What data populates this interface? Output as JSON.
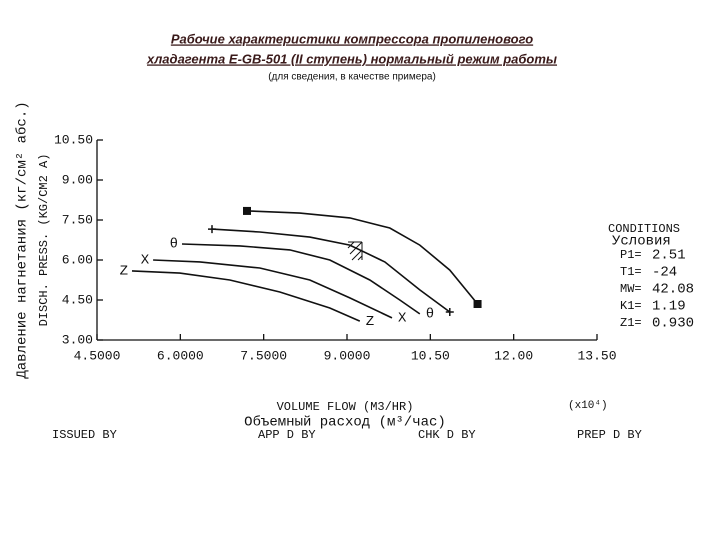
{
  "chart_data": {
    "type": "line",
    "title": "Рабочие характеристики компрессора пропиленового",
    "title_line2": "хладагента Е-GB-501 (II ступень) нормальный режим работы",
    "subtitle": "(для сведения, в качестве примера)",
    "y_label": "DISCH. PRESS. (KG/CM2 A)",
    "y_label_ru": "Давление нагнетания (кг/см² абс.)",
    "x_label": "VOLUME FLOW (M3/HR)",
    "x_label_ru": "Объемный расход (м³/час)",
    "x_multiplier": "(x10⁴)",
    "xlim": [
      4.5,
      13.5
    ],
    "ylim": [
      3.0,
      10.5
    ],
    "xticks": [
      {
        "value": 4.5,
        "label": "4.5000"
      },
      {
        "value": 6,
        "label": "6.0000"
      },
      {
        "value": 7.5,
        "label": "7.5000"
      },
      {
        "value": 9,
        "label": "9.0000"
      },
      {
        "value": 10.5,
        "label": "10.50"
      },
      {
        "value": 12,
        "label": "12.00"
      },
      {
        "value": 13.5,
        "label": "13.50"
      }
    ],
    "yticks": [
      {
        "value": 3,
        "label": "3.00"
      },
      {
        "value": 4.5,
        "label": "4.50"
      },
      {
        "value": 6,
        "label": "6.00"
      },
      {
        "value": 7.5,
        "label": "7.50"
      },
      {
        "value": 9,
        "label": "9.00"
      },
      {
        "value": 10.5,
        "label": "10.50"
      }
    ],
    "grid": false,
    "series": [
      {
        "marker": "square",
        "color": "#111111",
        "x": [
          7.2,
          8.15,
          9.05,
          9.77,
          10.31,
          10.85,
          11.35
        ],
        "values": [
          7.84,
          7.76,
          7.58,
          7.2,
          6.56,
          5.62,
          4.35
        ]
      },
      {
        "marker": "plus",
        "color": "#111111",
        "x": [
          6.57,
          7.43,
          8.33,
          9.05,
          9.68,
          10.31,
          10.85
        ],
        "values": [
          7.16,
          7.05,
          6.86,
          6.56,
          5.93,
          4.88,
          4.05
        ]
      },
      {
        "name": "θ",
        "marker": "text",
        "color": "#111111",
        "x": [
          6.03,
          7.07,
          7.97,
          8.69,
          9.41,
          9.95,
          10.31
        ],
        "values": [
          6.6,
          6.53,
          6.38,
          6.0,
          5.25,
          4.5,
          3.98
        ]
      },
      {
        "name": "X",
        "marker": "text",
        "color": "#111111",
        "x": [
          5.51,
          6.35,
          7.43,
          8.33,
          9.05,
          9.81
        ],
        "values": [
          6.0,
          5.93,
          5.7,
          5.25,
          4.58,
          3.83
        ]
      },
      {
        "name": "Z",
        "marker": "text",
        "color": "#111111",
        "x": [
          5.13,
          5.99,
          6.89,
          7.79,
          8.69,
          9.23
        ],
        "values": [
          5.59,
          5.51,
          5.25,
          4.8,
          4.2,
          3.71
        ]
      }
    ],
    "conditions_title": "CONDITIONS",
    "conditions_title_ru": "Условия",
    "conditions": [
      {
        "label": "P1=",
        "value": "2.51"
      },
      {
        "label": "T1=",
        "value": "-24"
      },
      {
        "label": "MW=",
        "value": "42.08"
      },
      {
        "label": "K1=",
        "value": "1.19"
      },
      {
        "label": "Z1=",
        "value": "0.930"
      }
    ],
    "footer": [
      "ISSUED BY",
      "APP D BY",
      "CHK D BY",
      "PREP D BY"
    ]
  }
}
